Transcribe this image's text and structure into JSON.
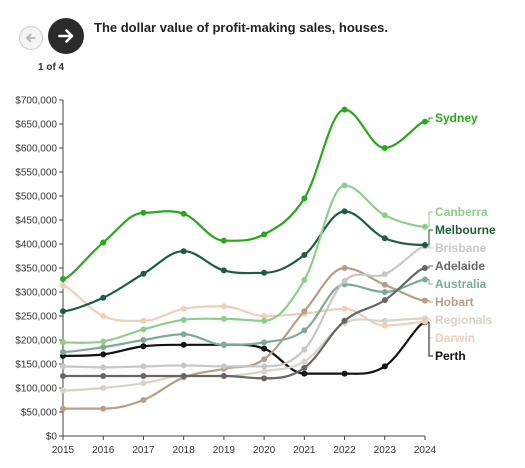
{
  "header": {
    "title": "The dollar value of profit-making sales, houses.",
    "page_indicator": "1 of 4",
    "prev_icon": "arrow-left-icon",
    "next_icon": "arrow-right-icon"
  },
  "chart_data": {
    "type": "line",
    "title": "The dollar value of profit-making sales, houses.",
    "xlabel": "",
    "ylabel": "",
    "x": [
      2015,
      2016,
      2017,
      2018,
      2019,
      2020,
      2021,
      2022,
      2023,
      2024
    ],
    "ylim": [
      0,
      700000
    ],
    "ytick_values": [
      0,
      50000,
      100000,
      150000,
      200000,
      250000,
      300000,
      350000,
      400000,
      450000,
      500000,
      550000,
      600000,
      650000,
      700000
    ],
    "ytick_labels": [
      "$0",
      "$50,000",
      "$100,000",
      "$150,000",
      "$200,000",
      "$250,000",
      "$300,000",
      "$350,000",
      "$400,000",
      "$450,000",
      "$500,000",
      "$550,000",
      "$600,000",
      "$650,000",
      "$700,000"
    ],
    "xtick_labels": [
      "2015",
      "2016",
      "2017",
      "2018",
      "2019",
      "2020",
      "2021",
      "2022",
      "2023",
      "2024"
    ],
    "grid": false,
    "legend": "direct labels at right",
    "series": [
      {
        "name": "Sydney",
        "color": "#2aa81b",
        "values": [
          327000,
          403000,
          465000,
          463000,
          407000,
          420000,
          495000,
          680000,
          600000,
          655000
        ]
      },
      {
        "name": "Canberra",
        "color": "#8ccf8a",
        "values": [
          195000,
          197000,
          222000,
          242000,
          244000,
          240000,
          325000,
          522000,
          460000,
          436000
        ]
      },
      {
        "name": "Melbourne",
        "color": "#1d5e3c",
        "values": [
          260000,
          288000,
          338000,
          385000,
          345000,
          340000,
          377000,
          468000,
          412000,
          398000
        ]
      },
      {
        "name": "Brisbane",
        "color": "#c7c7c7",
        "values": [
          145000,
          143000,
          145000,
          147000,
          145000,
          145000,
          180000,
          323000,
          337000,
          395000
        ]
      },
      {
        "name": "Adelaide",
        "color": "#666666",
        "values": [
          125000,
          125000,
          125000,
          125000,
          125000,
          120000,
          142000,
          240000,
          283000,
          350000
        ]
      },
      {
        "name": "Australia",
        "color": "#7cab96",
        "values": [
          175000,
          185000,
          200000,
          212000,
          190000,
          195000,
          220000,
          316000,
          300000,
          326000
        ]
      },
      {
        "name": "Hobart",
        "color": "#b89e85",
        "values": [
          57000,
          57000,
          75000,
          122000,
          140000,
          160000,
          260000,
          350000,
          315000,
          282000
        ]
      },
      {
        "name": "Regionals",
        "color": "#d9d2c8",
        "values": [
          95000,
          100000,
          110000,
          125000,
          125000,
          135000,
          155000,
          235000,
          240000,
          245000
        ]
      },
      {
        "name": "Darwin",
        "color": "#f0cfb8",
        "values": [
          313000,
          250000,
          240000,
          265000,
          270000,
          250000,
          255000,
          265000,
          230000,
          238000
        ]
      },
      {
        "name": "Perth",
        "color": "#111111",
        "values": [
          167000,
          170000,
          187000,
          190000,
          190000,
          182000,
          130000,
          130000,
          145000,
          237000
        ]
      }
    ]
  }
}
